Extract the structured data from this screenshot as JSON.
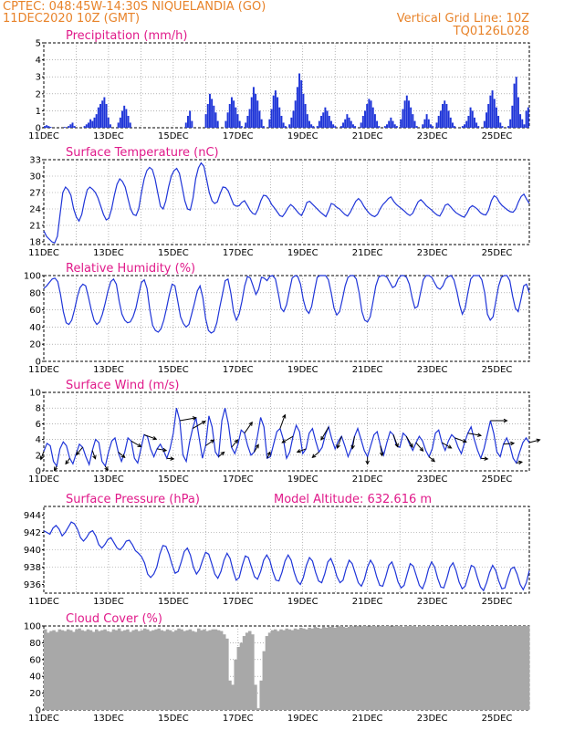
{
  "header": {
    "line1_left": "CPTEC:   048:45W-14:30S  NIQUELANDIA (GO)",
    "line2_left": "11DEC2020 10Z (GMT)",
    "line2_right": "Vertical Grid Line: 10Z",
    "line3_right": "TQ0126L028"
  },
  "colors": {
    "header": "#e8832a",
    "title": "#e01a8a",
    "series": "#1f35d8",
    "cloud": "#a8a8a8"
  },
  "x_labels": [
    "11DEC",
    "13DEC",
    "15DEC",
    "17DEC",
    "19DEC",
    "21DEC",
    "23DEC",
    "25DEC"
  ],
  "chart_data": [
    {
      "type": "bar",
      "title": "Precipitation  (mm/h)",
      "ylim": [
        0,
        5
      ],
      "yticks": [
        0,
        1,
        2,
        3,
        4,
        5
      ],
      "series_x": [],
      "values": [
        0.1,
        0.15,
        0.1,
        0.05,
        0,
        0,
        0,
        0,
        0,
        0,
        0.05,
        0,
        0.1,
        0.2,
        0.3,
        0.1,
        0,
        0,
        0,
        0,
        0.1,
        0.2,
        0.3,
        0.5,
        0.4,
        0.6,
        0.8,
        1.2,
        1.4,
        1.6,
        1.8,
        1.4,
        0.6,
        0.2,
        0,
        0,
        0,
        0.3,
        0.6,
        1.0,
        1.3,
        1.1,
        0.7,
        0.3,
        0,
        0,
        0,
        0,
        0,
        0,
        0,
        0,
        0,
        0,
        0,
        0,
        0,
        0,
        0,
        0,
        0,
        0,
        0,
        0,
        0,
        0,
        0,
        0,
        0,
        0,
        0,
        0.3,
        0.7,
        1.0,
        0.4,
        0,
        0,
        0,
        0,
        0,
        0,
        0.8,
        1.4,
        2.0,
        1.7,
        1.3,
        0.9,
        0.4,
        0,
        0,
        0,
        0.4,
        0.9,
        1.4,
        1.8,
        1.6,
        1.2,
        0.8,
        0.4,
        0.1,
        0,
        0.3,
        0.7,
        1.1,
        1.8,
        2.4,
        2.0,
        1.6,
        1.0,
        0.5,
        0.1,
        0,
        0,
        0.5,
        1.1,
        1.9,
        2.2,
        1.8,
        1.2,
        0.7,
        0.3,
        0.1,
        0,
        0.2,
        0.6,
        1.0,
        1.6,
        2.4,
        3.2,
        2.8,
        2.0,
        1.4,
        0.8,
        0.4,
        0.2,
        0.1,
        0,
        0.1,
        0.4,
        0.7,
        0.9,
        1.2,
        1.0,
        0.7,
        0.4,
        0.2,
        0.1,
        0,
        0,
        0.1,
        0.3,
        0.5,
        0.8,
        0.6,
        0.4,
        0.2,
        0.1,
        0,
        0,
        0.3,
        0.7,
        1.0,
        1.4,
        1.7,
        1.6,
        1.2,
        0.8,
        0.4,
        0.1,
        0,
        0,
        0.1,
        0.2,
        0.4,
        0.6,
        0.4,
        0.2,
        0.1,
        0,
        0.5,
        1.1,
        1.6,
        1.9,
        1.6,
        1.2,
        0.8,
        0.4,
        0.1,
        0,
        0,
        0.2,
        0.5,
        0.8,
        0.5,
        0.2,
        0.1,
        0,
        0.3,
        0.7,
        1.0,
        1.4,
        1.6,
        1.4,
        1.0,
        0.6,
        0.3,
        0.1,
        0,
        0,
        0,
        0.1,
        0.2,
        0.4,
        0.7,
        1.2,
        1.0,
        0.6,
        0.3,
        0.1,
        0,
        0,
        0.4,
        0.9,
        1.4,
        1.9,
        2.2,
        1.7,
        1.2,
        0.7,
        0.3,
        0.1,
        0,
        0,
        0.1,
        0.5,
        1.3,
        2.6,
        3.0,
        1.8,
        0.8,
        0.5,
        0.2,
        1.0,
        1.2
      ]
    },
    {
      "type": "line",
      "title": "Surface Temperature (nC)",
      "ylim": [
        17.5,
        33
      ],
      "yticks": [
        18,
        21,
        24,
        27,
        30,
        33
      ],
      "values": [
        20,
        19,
        18.5,
        18,
        17.8,
        19,
        23,
        27,
        28,
        27.5,
        26.5,
        24,
        22.5,
        21.8,
        23,
        25.5,
        27.5,
        28,
        27.6,
        27,
        26,
        24.5,
        23,
        22,
        22.3,
        24,
        26.5,
        28.5,
        29.5,
        29,
        28,
        26,
        24,
        23,
        22.8,
        24,
        27,
        29.5,
        31,
        31.6,
        31.2,
        29.5,
        27,
        24.5,
        24,
        25.5,
        28,
        30,
        31,
        31.4,
        30.5,
        28,
        25.5,
        24,
        23.8,
        26,
        29.5,
        31.5,
        32.4,
        31.8,
        29.5,
        27,
        25.5,
        25,
        25.3,
        26.8,
        28,
        27.9,
        27.3,
        26,
        24.8,
        24.5,
        24.6,
        25.2,
        25.5,
        24.7,
        23.8,
        23.2,
        23,
        24,
        25.5,
        26.5,
        26.4,
        25.8,
        24.8,
        24.2,
        23.5,
        22.8,
        22.6,
        23.3,
        24.2,
        24.8,
        24.4,
        23.8,
        23.2,
        22.8,
        23.8,
        25.2,
        25.4,
        24.9,
        24.4,
        23.9,
        23.4,
        23,
        22.6,
        23.7,
        25,
        24.8,
        24.3,
        24,
        23.5,
        23,
        22.7,
        23.4,
        24.4,
        25.4,
        25.9,
        25.4,
        24.5,
        23.8,
        23.2,
        22.8,
        22.6,
        23,
        24,
        24.8,
        25.3,
        25.9,
        26.2,
        25.4,
        24.8,
        24.4,
        24,
        23.6,
        23.1,
        22.8,
        23.2,
        24.3,
        25.3,
        25.7,
        25.2,
        24.6,
        24.2,
        23.8,
        23.3,
        22.9,
        22.7,
        23.6,
        24.7,
        24.9,
        24.4,
        23.8,
        23.3,
        23,
        22.7,
        22.5,
        23.2,
        24.2,
        24.6,
        24.3,
        23.9,
        23.3,
        23,
        22.9,
        23.8,
        25.5,
        26.4,
        26.1,
        25.2,
        24.6,
        24.2,
        23.8,
        23.5,
        23.4,
        24,
        25.3,
        26.3,
        26.7,
        25.8,
        25
      ]
    },
    {
      "type": "line",
      "title": "Relative Humidity (%)",
      "ylim": [
        0,
        100
      ],
      "yticks": [
        0,
        20,
        40,
        60,
        80,
        100
      ],
      "values": [
        85,
        88,
        92,
        96,
        97,
        93,
        78,
        58,
        45,
        43,
        48,
        60,
        75,
        86,
        90,
        88,
        75,
        60,
        48,
        43,
        46,
        55,
        68,
        82,
        93,
        96,
        90,
        70,
        55,
        48,
        45,
        46,
        52,
        62,
        78,
        92,
        95,
        85,
        60,
        42,
        36,
        34,
        38,
        48,
        62,
        78,
        90,
        88,
        70,
        52,
        44,
        40,
        43,
        55,
        68,
        82,
        88,
        74,
        50,
        36,
        33,
        35,
        45,
        62,
        78,
        94,
        96,
        80,
        58,
        48,
        55,
        70,
        88,
        99,
        97,
        88,
        78,
        84,
        98,
        97,
        94,
        99,
        100,
        96,
        80,
        62,
        58,
        66,
        82,
        97,
        100,
        99,
        90,
        72,
        60,
        56,
        64,
        82,
        98,
        100,
        100,
        100,
        95,
        80,
        62,
        54,
        58,
        72,
        88,
        98,
        100,
        100,
        96,
        80,
        58,
        48,
        46,
        52,
        70,
        88,
        98,
        100,
        100,
        98,
        92,
        86,
        88,
        96,
        100,
        100,
        98,
        90,
        74,
        62,
        64,
        80,
        95,
        100,
        100,
        98,
        92,
        86,
        84,
        88,
        96,
        99,
        100,
        95,
        82,
        66,
        55,
        62,
        80,
        96,
        100,
        100,
        100,
        95,
        80,
        55,
        48,
        52,
        70,
        88,
        98,
        100,
        100,
        94,
        76,
        62,
        58,
        72,
        88,
        90,
        80
      ]
    },
    {
      "type": "line",
      "title": "Surface Wind  (m/s)",
      "ylim": [
        0,
        10
      ],
      "yticks": [
        0,
        2,
        4,
        6,
        8,
        10
      ],
      "values": [
        2.5,
        3.5,
        3.2,
        1.2,
        0.6,
        2.8,
        3.7,
        3.2,
        1.6,
        0.9,
        2.2,
        3.4,
        3.0,
        1.8,
        0.8,
        2.6,
        4.0,
        3.6,
        1.2,
        0.6,
        2.4,
        3.8,
        4.2,
        2.4,
        1.2,
        2.4,
        4.2,
        3.8,
        1.6,
        1.0,
        2.8,
        4.6,
        4.4,
        2.8,
        1.8,
        2.8,
        3.4,
        2.6,
        1.6,
        2.8,
        4.8,
        8.0,
        6.4,
        2.0,
        1.2,
        3.6,
        5.4,
        6.8,
        4.2,
        1.6,
        3.2,
        7.0,
        5.6,
        2.4,
        1.8,
        6.4,
        8.0,
        6.0,
        3.0,
        2.2,
        3.4,
        5.2,
        4.8,
        3.2,
        2.0,
        2.4,
        4.4,
        6.8,
        5.6,
        1.6,
        1.8,
        3.4,
        5.0,
        5.4,
        4.0,
        1.6,
        2.4,
        4.4,
        5.8,
        5.0,
        2.2,
        2.8,
        4.8,
        5.4,
        3.8,
        2.4,
        3.0,
        4.6,
        5.6,
        4.0,
        2.8,
        3.8,
        4.4,
        3.2,
        1.8,
        2.8,
        4.4,
        5.4,
        4.0,
        2.6,
        1.8,
        3.2,
        4.6,
        5.0,
        3.2,
        2.0,
        3.6,
        5.0,
        4.6,
        3.2,
        3.0,
        4.8,
        4.4,
        3.4,
        2.6,
        3.6,
        4.4,
        3.8,
        2.6,
        1.8,
        2.8,
        4.8,
        5.2,
        3.6,
        2.6,
        3.8,
        4.6,
        4.2,
        3.0,
        2.2,
        3.6,
        4.8,
        5.6,
        4.0,
        2.6,
        1.6,
        2.8,
        4.6,
        6.4,
        4.8,
        2.4,
        1.8,
        3.4,
        4.2,
        3.2,
        1.6,
        1.0,
        2.4,
        3.6,
        4.2,
        3.6
      ]
    },
    {
      "type": "line",
      "title": "Surface Pressure (hPa)",
      "annotation": "Model Altitude: 632.616  m",
      "ylim": [
        935,
        945
      ],
      "yticks": [
        936,
        938,
        940,
        942,
        944
      ],
      "values": [
        942.2,
        942.0,
        941.8,
        942.5,
        942.8,
        942.4,
        941.6,
        942.0,
        942.6,
        943.2,
        943.0,
        942.4,
        941.4,
        941.0,
        941.4,
        942.0,
        942.2,
        941.6,
        940.6,
        940.2,
        940.6,
        941.2,
        941.4,
        940.8,
        940.2,
        940.0,
        940.4,
        941.0,
        941.1,
        940.6,
        939.9,
        939.6,
        939.2,
        938.5,
        937.2,
        936.8,
        937.2,
        938.0,
        939.5,
        940.5,
        940.4,
        939.5,
        938.3,
        937.3,
        937.5,
        938.6,
        939.8,
        940.2,
        939.4,
        938.0,
        937.2,
        937.7,
        938.8,
        939.7,
        939.5,
        938.4,
        937.2,
        936.7,
        937.5,
        938.8,
        939.6,
        939.0,
        937.6,
        936.5,
        936.8,
        938.2,
        939.3,
        939.1,
        938.0,
        936.9,
        936.6,
        937.5,
        938.8,
        939.4,
        938.8,
        937.5,
        936.5,
        936.4,
        937.4,
        938.7,
        939.4,
        938.8,
        937.4,
        936.4,
        936.0,
        936.8,
        938.2,
        939.1,
        938.7,
        937.4,
        936.4,
        936.2,
        937.2,
        938.6,
        939.0,
        938.1,
        936.9,
        936.2,
        936.5,
        937.8,
        938.8,
        938.4,
        937.3,
        936.2,
        935.8,
        936.6,
        938.0,
        938.8,
        938.2,
        936.9,
        935.9,
        935.8,
        936.9,
        938.2,
        938.6,
        937.6,
        936.3,
        935.6,
        935.9,
        937.2,
        938.4,
        938.1,
        937.0,
        935.9,
        935.5,
        936.4,
        937.8,
        938.6,
        938.0,
        936.7,
        935.7,
        935.6,
        936.7,
        938.0,
        938.5,
        937.6,
        936.3,
        935.5,
        935.8,
        937.0,
        938.2,
        938.0,
        936.8,
        935.7,
        935.3,
        936.2,
        937.4,
        938.2,
        937.6,
        936.4,
        935.5,
        935.6,
        936.8,
        937.8,
        938.0,
        937.2,
        936.0,
        935.4,
        936.2,
        937.6
      ]
    },
    {
      "type": "area",
      "title": "Cloud Cover (%)",
      "ylim": [
        0,
        100
      ],
      "yticks": [
        0,
        20,
        40,
        60,
        80,
        100
      ],
      "values": [
        96,
        92,
        94,
        95,
        93,
        96,
        95,
        94,
        96,
        95,
        93,
        96,
        97,
        95,
        94,
        96,
        95,
        93,
        96,
        94,
        95,
        96,
        94,
        93,
        96,
        95,
        97,
        94,
        95,
        96,
        93,
        95,
        96,
        94,
        95,
        97,
        96,
        94,
        95,
        96,
        97,
        95,
        94,
        96,
        95,
        93,
        95,
        97,
        96,
        94,
        95,
        96,
        94,
        93,
        97,
        95,
        96,
        94,
        95,
        96,
        96,
        95,
        94,
        90,
        85,
        35,
        30,
        60,
        75,
        80,
        88,
        92,
        94,
        90,
        30,
        2,
        35,
        70,
        88,
        92,
        95,
        96,
        94,
        96,
        95,
        97,
        96,
        95,
        97,
        96,
        98,
        97,
        96,
        98,
        97,
        99,
        98,
        97,
        99,
        98,
        99,
        99,
        98,
        99,
        100,
        99,
        98,
        99,
        100,
        99,
        100,
        99,
        100,
        100,
        99,
        100,
        100,
        99,
        100,
        100,
        100,
        100,
        99,
        100,
        100,
        100,
        99,
        100,
        100,
        100,
        100,
        99,
        100,
        100,
        100,
        100,
        100,
        100,
        100,
        100,
        100,
        100,
        100,
        100,
        100,
        100,
        100,
        100,
        100,
        100,
        100,
        100,
        100,
        100,
        100,
        100,
        100,
        100,
        100,
        100,
        100,
        100,
        100,
        100,
        100,
        100,
        100,
        100,
        100,
        100,
        100
      ]
    }
  ],
  "wind_arrows_dir_deg": [
    200,
    210,
    215,
    220,
    160,
    150,
    130,
    120,
    110,
    100,
    95,
    80,
    60,
    55,
    50,
    40,
    35,
    30,
    25,
    20,
    240,
    250,
    230,
    210,
    200,
    190,
    180,
    170,
    160,
    150,
    140,
    130,
    120,
    110,
    100,
    95,
    90,
    85,
    80,
    75
  ]
}
